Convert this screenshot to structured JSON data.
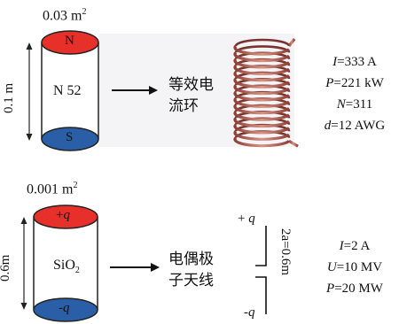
{
  "magnet": {
    "area": "0.03 m",
    "area_exp": "2",
    "height": "0.1 m",
    "north": "N",
    "south": "S",
    "material": "N 52",
    "arrow_label_line1": "等效电",
    "arrow_label_line2": "流环",
    "params": {
      "i": {
        "var": "I",
        "val": "=333 A"
      },
      "p": {
        "var": "P",
        "val": "=221 kW"
      },
      "n": {
        "var": "N",
        "val": "=311"
      },
      "d": {
        "var": "d",
        "val": "=12 AWG"
      }
    }
  },
  "dielectric": {
    "area": "0.001 m",
    "area_exp": "2",
    "height": "0.6m",
    "top": "+",
    "top_var": "q",
    "bottom": "-",
    "bottom_var": "q",
    "material": "SiO",
    "material_sub": "2",
    "arrow_label_line1": "电偶极",
    "arrow_label_line2": "子天线",
    "dipole_plus": "+ ",
    "dipole_plus_var": "q",
    "dipole_minus": "-",
    "dipole_minus_var": "q",
    "dipole_gap": "2a=0.6m",
    "params": {
      "i": {
        "var": "I",
        "val": "=2 A"
      },
      "u": {
        "var": "U",
        "val": "=10 MV"
      },
      "p": {
        "var": "P",
        "val": "=20 MW"
      }
    }
  },
  "colors": {
    "red": "#e8302b",
    "blue": "#2a5fa8",
    "coil": "#b5655a"
  }
}
